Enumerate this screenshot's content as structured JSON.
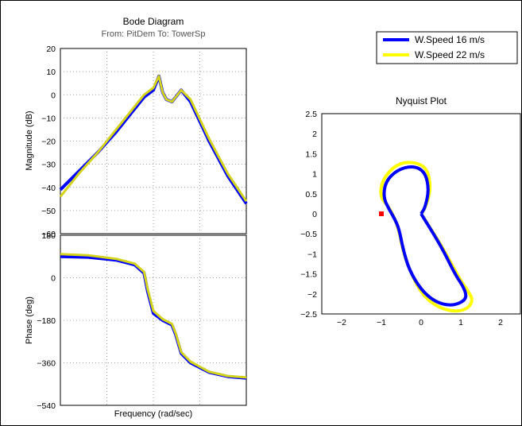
{
  "chart_data": [
    {
      "type": "line",
      "title": "Bode Diagram",
      "subtitle": "From: PitDem  To: TowerSp",
      "panels": [
        {
          "name": "magnitude",
          "ylabel": "Magnitude (dB)",
          "ylim": [
            -60,
            20
          ],
          "yticks": [
            "20",
            "10",
            "0",
            "−10",
            "−20",
            "−30",
            "−40",
            "−50",
            "−60"
          ],
          "series": [
            {
              "color": "#0000ff",
              "x": [
                0,
                0.1,
                0.2,
                0.3,
                0.4,
                0.45,
                0.5,
                0.53,
                0.55,
                0.57,
                0.6,
                0.62,
                0.65,
                0.7,
                0.8,
                0.9,
                1.0
              ],
              "y": [
                -41,
                -33,
                -25,
                -16,
                -6,
                -1,
                2,
                8,
                1,
                -2,
                -3,
                -1,
                2,
                -3,
                -20,
                -35,
                -47
              ]
            },
            {
              "color": "#d4d41c",
              "x": [
                0,
                0.1,
                0.2,
                0.3,
                0.4,
                0.45,
                0.5,
                0.53,
                0.55,
                0.57,
                0.6,
                0.62,
                0.65,
                0.7,
                0.8,
                0.9,
                1.0
              ],
              "y": [
                -44,
                -34,
                -25,
                -15,
                -5,
                0,
                3,
                8,
                1,
                -2,
                -3,
                -1,
                2,
                -2,
                -19,
                -34,
                -46
              ]
            }
          ]
        },
        {
          "name": "phase",
          "ylabel": "Phase (deg)",
          "xlabel": "Frequency  (rad/sec)",
          "ylim": [
            -540,
            180
          ],
          "yticks": [
            "180",
            "0",
            "−180",
            "−360",
            "−540"
          ],
          "series": [
            {
              "color": "#0000ff",
              "x": [
                0,
                0.15,
                0.3,
                0.4,
                0.45,
                0.47,
                0.5,
                0.55,
                0.6,
                0.62,
                0.65,
                0.7,
                0.8,
                0.9,
                1.0
              ],
              "y": [
                90,
                87,
                75,
                55,
                20,
                -60,
                -150,
                -180,
                -200,
                -240,
                -320,
                -360,
                -400,
                -418,
                -425
              ]
            },
            {
              "color": "#d4d41c",
              "x": [
                0,
                0.15,
                0.3,
                0.4,
                0.45,
                0.47,
                0.5,
                0.55,
                0.6,
                0.62,
                0.65,
                0.7,
                0.8,
                0.9,
                1.0
              ],
              "y": [
                100,
                95,
                80,
                60,
                25,
                -50,
                -140,
                -175,
                -195,
                -235,
                -315,
                -355,
                -398,
                -416,
                -422
              ]
            }
          ]
        }
      ]
    },
    {
      "type": "line",
      "title": "Nyquist Plot",
      "xlim": [
        -2.5,
        2.5
      ],
      "ylim": [
        -2.5,
        2.5
      ],
      "xticks": [
        -2,
        -1,
        0,
        1,
        2
      ],
      "yticks": [
        2.5,
        2,
        1.5,
        1,
        0.5,
        0,
        -0.5,
        -1,
        -1.5,
        -2,
        -2.5
      ],
      "grid": false,
      "legend_position": "top-right",
      "critical_point": {
        "x": -1,
        "y": 0,
        "color": "#ff0000"
      },
      "series": [
        {
          "name": "W.Speed 16 m/s",
          "color": "#0000ff",
          "x": [
            0.0,
            0.5,
            0.85,
            1.05,
            1.15,
            1.05,
            0.75,
            0.35,
            0.0,
            -0.3,
            -0.45,
            -0.55,
            -0.65,
            -0.8,
            -0.95,
            -0.9,
            -0.6,
            -0.2,
            0.1,
            0.2,
            0.1,
            0.0
          ],
          "y": [
            0.0,
            -0.8,
            -1.5,
            -1.8,
            -2.05,
            -2.2,
            -2.3,
            -2.2,
            -1.9,
            -1.4,
            -0.9,
            -0.4,
            -0.15,
            0.1,
            0.4,
            0.8,
            1.1,
            1.2,
            1.05,
            0.6,
            0.15,
            0.0
          ]
        },
        {
          "name": "W.Speed 22 m/s",
          "color": "#ffff00",
          "x": [
            0.0,
            0.55,
            0.95,
            1.2,
            1.3,
            1.2,
            0.9,
            0.45,
            0.05,
            -0.25,
            -0.45,
            -0.55,
            -0.65,
            -0.8,
            -1.05,
            -0.95,
            -0.6,
            -0.2,
            0.15,
            0.25,
            0.12,
            0.0
          ],
          "y": [
            0.0,
            -0.85,
            -1.6,
            -1.95,
            -2.15,
            -2.35,
            -2.45,
            -2.35,
            -2.05,
            -1.5,
            -0.95,
            -0.45,
            -0.15,
            0.15,
            0.45,
            0.9,
            1.25,
            1.3,
            1.15,
            0.65,
            0.18,
            0.0
          ]
        }
      ]
    }
  ]
}
